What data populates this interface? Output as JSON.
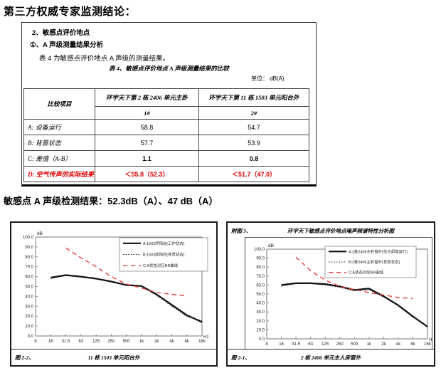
{
  "page": {
    "heading": "第三方权威专家监测结论：",
    "result_line": "敏感点 A 声级检测结果：52.3dB（A）、47 dB（A）"
  },
  "report": {
    "line1": "2、敏感点评价地点",
    "line2": "①、A 声级测量结果分析",
    "line3": "表 4 为敏感点评价地点 A 声级的测量结果。",
    "table_caption": "表 4、敏感点评价地点 A 声级测量结果的比较",
    "unit_label": "单位：  dB(A)",
    "table": {
      "col_header": "比较项目",
      "group_headers": [
        "环宇天下第 2 栋 2406 单元主卧",
        "环宇天下第 11 栋 1503 单元阳台外"
      ],
      "sub_headers": [
        "1#",
        "2#"
      ],
      "rows": [
        {
          "label": "A: 设备运行",
          "v1": "58.8",
          "v2": "54.7",
          "style": "normal"
        },
        {
          "label": "B: 背景状态",
          "v1": "57.7",
          "v2": "53.9",
          "style": "normal"
        },
        {
          "label": "C: 差值（A-B）",
          "v1": "1.1",
          "v2": "0.8",
          "style": "bold"
        },
        {
          "label": "D: 空气传声的实际结果",
          "v1": "＜55.8（52.3）",
          "v2": "＜51.7（47.0）",
          "style": "red"
        }
      ]
    }
  },
  "colors": {
    "table_red": "#e00000",
    "curve_red": "#e8403c",
    "line_black": "#111111"
  },
  "chart_data": [
    {
      "id": "left",
      "type": "line",
      "figure_label": "图 2-2、",
      "caption": "11 栋 1503 单元阳台外",
      "y_unit": "dB",
      "x_unit": "Hz",
      "categories": [
        "8",
        "16",
        "31.5",
        "63",
        "125",
        "250",
        "500",
        "1k",
        "2k",
        "4k",
        "8k",
        "16k"
      ],
      "ylim": [
        0,
        100
      ],
      "ytick_step": 10,
      "ytick_labels": [
        "100.0",
        "90.0",
        "80.0",
        "70.0",
        "60.0",
        "50.0",
        "40.0",
        "30.0",
        "20.0",
        "10.0",
        "0.0"
      ],
      "grid": false,
      "legend_position": "top-right",
      "series": [
        {
          "name": "A:1503房阳台(工作状态)",
          "style": "solid-black-thick",
          "start_index": 1,
          "values": [
            59,
            61.5,
            60,
            58,
            55,
            51.5,
            50.5,
            42,
            31.5,
            21,
            14
          ]
        },
        {
          "name": "B:1503房阳台(背景状态)",
          "style": "dotted-black",
          "start_index": 1,
          "values": [
            58,
            61,
            59.5,
            57.5,
            54.5,
            51,
            50,
            41,
            30,
            19.5,
            15.5
          ]
        },
        {
          "name": "C:A状态对应NR曲线",
          "style": "dashed-red",
          "start_index": 2,
          "values": [
            89,
            79,
            70,
            60,
            52.5,
            48.5,
            44,
            42,
            40.5
          ]
        }
      ]
    },
    {
      "id": "right",
      "type": "line",
      "header_label": "附图 3、",
      "title": "环宇天下敏感点评价地点噪声频谱特性分析图",
      "figure_label": "图 2-1、",
      "caption": "2 栋 2406 单元主人房窗外",
      "y_unit": "dB",
      "x_unit": "Hz",
      "categories": [
        "8",
        "16",
        "31.5",
        "63",
        "125",
        "250",
        "500",
        "1k",
        "2k",
        "4k",
        "8k",
        "16k"
      ],
      "ylim": [
        0,
        100
      ],
      "ytick_step": 10,
      "ytick_labels": [
        "100.0",
        "90.0",
        "80.0",
        "70.0",
        "60.0",
        "50.0",
        "40.0",
        "30.0",
        "20.0",
        "10.0",
        "0.0"
      ],
      "grid": false,
      "legend_position": "top-right",
      "series": [
        {
          "name": "A:2栋2406主卧窗外(仅冷却塔运行)",
          "style": "solid-black-thick",
          "start_index": 1,
          "values": [
            60,
            62,
            62,
            61,
            58.5,
            54.5,
            56,
            47.5,
            37.5,
            25,
            13.5
          ]
        },
        {
          "name": "B:2栋2406主卧窗外(背景状态)",
          "style": "dotted-black",
          "start_index": 1,
          "values": [
            58.5,
            61.5,
            61.5,
            60,
            57.5,
            53.5,
            54.5,
            46.5,
            36.5,
            24,
            14.5
          ]
        },
        {
          "name": "C:A状态对应NR曲线",
          "style": "dashed-red",
          "start_index": 2,
          "values": [
            91,
            76,
            65.5,
            58.5,
            55,
            51.5,
            49,
            46,
            45
          ]
        }
      ]
    }
  ]
}
